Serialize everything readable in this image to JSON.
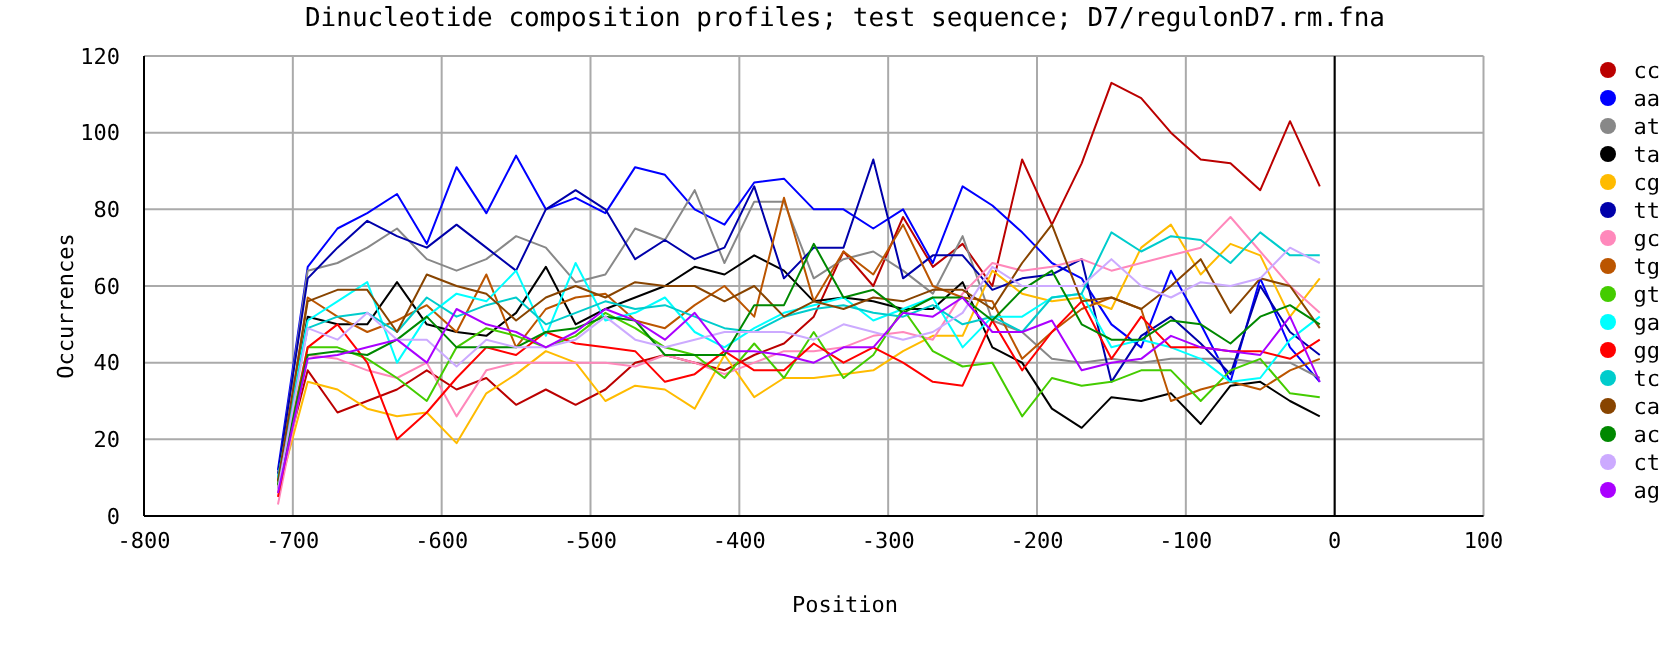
{
  "chart_data": {
    "type": "line",
    "title": "Dinucleotide composition profiles; test sequence; D7/regulonD7.rm.fna",
    "xlabel": "Position",
    "ylabel": "Occurrences",
    "x": [
      -710,
      -690,
      -670,
      -650,
      -630,
      -610,
      -590,
      -570,
      -550,
      -530,
      -510,
      -490,
      -470,
      -450,
      -430,
      -410,
      -390,
      -370,
      -350,
      -330,
      -310,
      -290,
      -270,
      -250,
      -230,
      -210,
      -190,
      -170,
      -150,
      -130,
      -110,
      -90,
      -70,
      -50,
      -30,
      -10
    ],
    "xlim": [
      -800,
      100
    ],
    "xticks": [
      -800,
      -700,
      -600,
      -500,
      -400,
      -300,
      -200,
      -100,
      0,
      100
    ],
    "ylim": [
      0,
      120
    ],
    "yticks": [
      0,
      20,
      40,
      60,
      80,
      100,
      120
    ],
    "grid": true,
    "legend": "right",
    "ref_lines": [
      {
        "axis": "x",
        "value": 0,
        "color": "#000000"
      }
    ],
    "series": [
      {
        "name": "cc",
        "color": "#bb0000",
        "values": [
          8,
          38,
          27,
          30,
          33,
          38,
          33,
          36,
          29,
          33,
          29,
          33,
          40,
          42,
          40,
          38,
          42,
          45,
          52,
          69,
          60,
          78,
          65,
          71,
          60,
          93,
          76,
          92,
          113,
          109,
          100,
          93,
          92,
          85,
          103,
          86
        ]
      },
      {
        "name": "aa",
        "color": "#0000ff",
        "values": [
          12,
          65,
          75,
          79,
          84,
          71,
          91,
          79,
          94,
          80,
          83,
          79,
          91,
          89,
          80,
          76,
          87,
          88,
          80,
          80,
          75,
          80,
          66,
          86,
          81,
          74,
          66,
          62,
          50,
          44,
          64,
          50,
          35,
          62,
          44,
          35
        ]
      },
      {
        "name": "at",
        "color": "#888888",
        "values": [
          10,
          64,
          66,
          70,
          75,
          67,
          64,
          67,
          73,
          70,
          61,
          63,
          75,
          72,
          85,
          66,
          82,
          82,
          62,
          67,
          69,
          64,
          58,
          73,
          51,
          48,
          41,
          40,
          41,
          40,
          41,
          41,
          41,
          40,
          40,
          36
        ]
      },
      {
        "name": "ta",
        "color": "#000000",
        "values": [
          9,
          52,
          50,
          50,
          61,
          50,
          48,
          47,
          53,
          65,
          50,
          54,
          57,
          60,
          65,
          63,
          68,
          64,
          56,
          57,
          56,
          54,
          54,
          61,
          44,
          40,
          28,
          23,
          31,
          30,
          32,
          24,
          34,
          35,
          30,
          26
        ]
      },
      {
        "name": "cg",
        "color": "#ffbb00",
        "values": [
          6,
          35,
          33,
          28,
          26,
          27,
          19,
          32,
          37,
          43,
          40,
          30,
          34,
          33,
          28,
          42,
          31,
          36,
          36,
          37,
          38,
          43,
          47,
          47,
          64,
          58,
          56,
          57,
          54,
          70,
          76,
          63,
          71,
          68,
          52,
          62
        ]
      },
      {
        "name": "tt",
        "color": "#0000aa",
        "values": [
          11,
          62,
          70,
          77,
          73,
          70,
          76,
          70,
          64,
          80,
          85,
          80,
          67,
          72,
          67,
          70,
          86,
          62,
          70,
          70,
          93,
          62,
          68,
          68,
          59,
          62,
          63,
          67,
          35,
          47,
          52,
          45,
          37,
          60,
          48,
          42
        ]
      },
      {
        "name": "gc",
        "color": "#ff88bb",
        "values": [
          3,
          42,
          41,
          38,
          36,
          40,
          26,
          38,
          40,
          40,
          40,
          40,
          39,
          42,
          40,
          37,
          40,
          43,
          43,
          44,
          47,
          48,
          46,
          58,
          66,
          64,
          65,
          67,
          64,
          66,
          68,
          70,
          78,
          69,
          60,
          53
        ]
      },
      {
        "name": "tg",
        "color": "#bb5500",
        "values": [
          7,
          57,
          52,
          48,
          51,
          55,
          48,
          63,
          44,
          54,
          57,
          58,
          51,
          49,
          55,
          60,
          52,
          83,
          56,
          69,
          63,
          76,
          60,
          57,
          56,
          41,
          48,
          54,
          57,
          54,
          30,
          33,
          35,
          33,
          38,
          41
        ]
      },
      {
        "name": "gt",
        "color": "#44cc00",
        "values": [
          8,
          44,
          44,
          41,
          36,
          30,
          44,
          49,
          47,
          44,
          47,
          53,
          49,
          44,
          42,
          36,
          45,
          36,
          48,
          36,
          42,
          54,
          43,
          39,
          40,
          26,
          36,
          34,
          35,
          38,
          38,
          30,
          38,
          41,
          32,
          31
        ]
      },
      {
        "name": "ga",
        "color": "#00ffff",
        "values": [
          10,
          51,
          56,
          61,
          40,
          52,
          58,
          56,
          64,
          47,
          66,
          51,
          53,
          57,
          48,
          44,
          49,
          53,
          55,
          57,
          51,
          54,
          57,
          44,
          52,
          52,
          57,
          58,
          44,
          46,
          44,
          41,
          35,
          36,
          46,
          52
        ]
      },
      {
        "name": "gg",
        "color": "#ff0000",
        "values": [
          5,
          44,
          50,
          40,
          20,
          27,
          36,
          44,
          42,
          48,
          45,
          44,
          43,
          35,
          37,
          43,
          38,
          38,
          45,
          40,
          44,
          40,
          35,
          34,
          51,
          38,
          48,
          56,
          41,
          52,
          44,
          44,
          43,
          43,
          41,
          46
        ]
      },
      {
        "name": "tc",
        "color": "#00cccc",
        "values": [
          10,
          49,
          52,
          53,
          48,
          57,
          52,
          55,
          57,
          50,
          53,
          56,
          54,
          55,
          52,
          49,
          48,
          52,
          54,
          55,
          53,
          52,
          55,
          50,
          52,
          48,
          57,
          58,
          74,
          69,
          73,
          72,
          66,
          74,
          68,
          68
        ]
      },
      {
        "name": "ca",
        "color": "#884400",
        "values": [
          9,
          56,
          59,
          59,
          48,
          63,
          60,
          58,
          51,
          57,
          60,
          57,
          61,
          60,
          60,
          56,
          60,
          52,
          56,
          54,
          57,
          56,
          59,
          59,
          54,
          66,
          76,
          56,
          57,
          54,
          60,
          67,
          53,
          62,
          60,
          49
        ]
      },
      {
        "name": "ac",
        "color": "#008800",
        "values": [
          8,
          42,
          43,
          42,
          46,
          52,
          44,
          44,
          44,
          48,
          49,
          52,
          51,
          42,
          42,
          42,
          55,
          55,
          71,
          57,
          59,
          53,
          57,
          57,
          51,
          59,
          64,
          50,
          46,
          46,
          51,
          50,
          45,
          52,
          55,
          50
        ]
      },
      {
        "name": "ct",
        "color": "#ccaaff",
        "values": [
          7,
          49,
          46,
          53,
          46,
          46,
          39,
          46,
          44,
          44,
          46,
          52,
          46,
          44,
          46,
          48,
          48,
          48,
          46,
          50,
          48,
          46,
          48,
          53,
          65,
          60,
          60,
          60,
          67,
          60,
          57,
          61,
          60,
          62,
          70,
          66
        ]
      },
      {
        "name": "ag",
        "color": "#aa00ff",
        "values": [
          6,
          41,
          42,
          44,
          46,
          40,
          54,
          50,
          48,
          44,
          48,
          54,
          51,
          46,
          53,
          43,
          43,
          42,
          40,
          44,
          44,
          53,
          52,
          57,
          48,
          48,
          51,
          38,
          40,
          41,
          47,
          44,
          43,
          42,
          52,
          35
        ]
      }
    ]
  }
}
